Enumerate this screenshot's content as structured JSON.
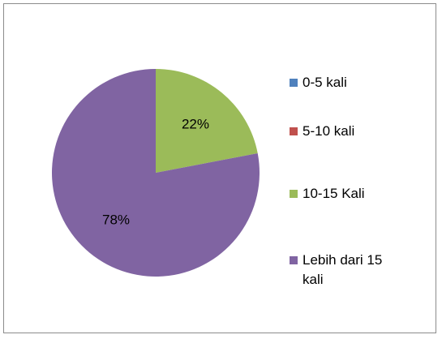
{
  "chart_data": {
    "type": "pie",
    "categories": [
      "0-5 kali",
      "5-10 kali",
      "10-15 Kali",
      "Lebih dari 15 kali"
    ],
    "values": [
      0,
      0,
      22,
      78
    ],
    "value_labels": [
      null,
      null,
      "22%",
      "78%"
    ],
    "colors": [
      "#4f81bd",
      "#c0504d",
      "#9bbb59",
      "#8064a2"
    ],
    "legend": "right"
  }
}
